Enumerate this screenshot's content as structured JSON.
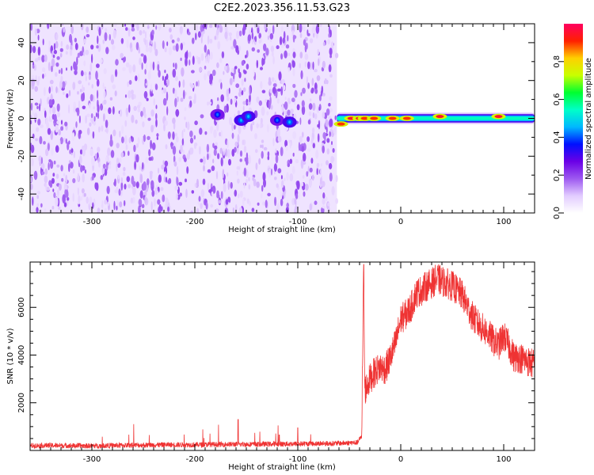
{
  "title": "C2E2.2023.356.11.53.G23",
  "chart_data": [
    {
      "type": "heatmap",
      "xlabel": "Height of straight line (km)",
      "ylabel": "Frequency (Hz)",
      "xlim": [
        -360,
        130
      ],
      "ylim": [
        -50,
        50
      ],
      "x_ticks": [
        -300,
        -200,
        -100,
        0,
        100
      ],
      "x_tick_labels": [
        "-300",
        "-200",
        "-100",
        "0",
        "100"
      ],
      "y_ticks": [
        -40,
        -20,
        0,
        20,
        40
      ],
      "y_tick_labels": [
        "-40",
        "-20",
        "0",
        "20",
        "40"
      ],
      "grid": false,
      "colorbar": {
        "label": "Normalized spectral amplitude",
        "range": [
          0,
          1
        ],
        "ticks": [
          0.0,
          0.2,
          0.4,
          0.6,
          0.8
        ],
        "tick_labels": [
          "0.0",
          "0.2",
          "0.4",
          "0.6",
          "0.8"
        ],
        "colors": [
          "#ffffff",
          "#e2ccff",
          "#9d58f0",
          "#6a00e6",
          "#0010ff",
          "#00b8ff",
          "#00ffc8",
          "#00ff30",
          "#c8ff00",
          "#ffd000",
          "#ff2000",
          "#ff0060"
        ]
      },
      "noise_region": {
        "x_from": -360,
        "x_to": -62,
        "freq_from": -50,
        "freq_to": 50,
        "dominant_amplitude": 0.15
      },
      "bursts": [
        {
          "x": -178,
          "freq": 2,
          "amplitude": 0.3
        },
        {
          "x": -155,
          "freq": -1,
          "amplitude": 0.35
        },
        {
          "x": -148,
          "freq": 1,
          "amplitude": 0.35
        },
        {
          "x": -120,
          "freq": -1,
          "amplitude": 0.3
        },
        {
          "x": -108,
          "freq": -2,
          "amplitude": 0.35
        }
      ],
      "signal_band": {
        "x_from": -62,
        "x_to": 130,
        "freq_center": 0,
        "freq_halfwidth": 3,
        "peaks": [
          {
            "x": -58,
            "freq": -3,
            "amplitude": 0.9
          },
          {
            "x": -48,
            "freq": 0,
            "amplitude": 0.95
          },
          {
            "x": -40,
            "freq": 0,
            "amplitude": 0.95
          },
          {
            "x": -35,
            "freq": 0,
            "amplitude": 0.9
          },
          {
            "x": -26,
            "freq": 0,
            "amplitude": 0.9
          },
          {
            "x": -8,
            "freq": 0,
            "amplitude": 0.9
          },
          {
            "x": 6,
            "freq": 0,
            "amplitude": 0.9
          },
          {
            "x": 38,
            "freq": 1,
            "amplitude": 0.95
          },
          {
            "x": 95,
            "freq": 1,
            "amplitude": 0.95
          }
        ]
      }
    },
    {
      "type": "line",
      "xlabel": "Height of straight line (km)",
      "ylabel": "SNR (10 * v/v)",
      "xlim": [
        -360,
        130
      ],
      "ylim": [
        0,
        7900
      ],
      "x_ticks": [
        -300,
        -200,
        -100,
        0,
        100
      ],
      "x_tick_labels": [
        "-300",
        "-200",
        "-100",
        "0",
        "100"
      ],
      "y_ticks": [
        2000,
        4000,
        6000
      ],
      "y_tick_labels": [
        "2000",
        "4000",
        "6000"
      ],
      "grid": false,
      "series": [
        {
          "color": "#ef3333",
          "x": [
            -360,
            -340,
            -320,
            -300,
            -280,
            -260,
            -240,
            -220,
            -200,
            -180,
            -160,
            -140,
            -120,
            -100,
            -90,
            -80,
            -70,
            -60,
            -50,
            -42,
            -38,
            -36,
            -35,
            -30,
            -25,
            -20,
            -15,
            -10,
            -5,
            0,
            5,
            10,
            15,
            20,
            25,
            30,
            35,
            40,
            45,
            50,
            55,
            60,
            65,
            70,
            75,
            80,
            85,
            90,
            95,
            100,
            105,
            110,
            115,
            120,
            125,
            130
          ],
          "y": [
            200,
            210,
            200,
            190,
            210,
            220,
            230,
            240,
            240,
            250,
            260,
            260,
            270,
            280,
            280,
            290,
            290,
            300,
            320,
            330,
            600,
            7800,
            2500,
            3000,
            3300,
            3500,
            3400,
            3900,
            4500,
            5500,
            5700,
            6000,
            6600,
            6700,
            6900,
            7000,
            7200,
            7100,
            7000,
            6900,
            6700,
            6500,
            6000,
            5600,
            5300,
            5100,
            4900,
            4600,
            4400,
            4800,
            4400,
            3900,
            3900,
            3800,
            3700,
            3600
          ]
        }
      ],
      "annotations": [
        {
          "x": -158,
          "y": 1300
        },
        {
          "x": -100,
          "y": 950
        },
        {
          "x": -118,
          "y": 650
        }
      ]
    }
  ]
}
